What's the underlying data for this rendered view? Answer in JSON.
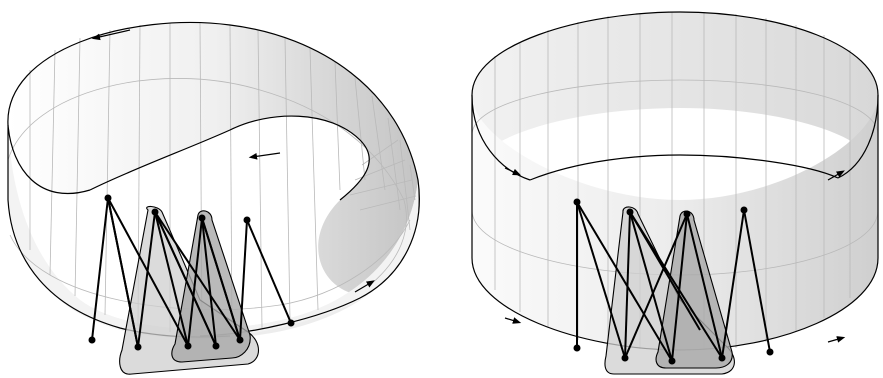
{
  "figure": {
    "panels": [
      {
        "id": "mobius",
        "surface": "mobius-band",
        "vertices": 8,
        "edges": 15,
        "highlighted_regions": 2
      },
      {
        "id": "cylinder",
        "surface": "annulus",
        "vertices": 8,
        "edges": 15,
        "highlighted_regions": 2
      }
    ],
    "colors": {
      "stroke": "#000000",
      "surface_light": "#f7f7f7",
      "surface_dark": "#c8c8c8",
      "grid": "#b9b9b9",
      "region_outer": "#cfcfcf",
      "region_inner": "#a9a9a9"
    },
    "icons": [
      "arrow-icon"
    ]
  }
}
